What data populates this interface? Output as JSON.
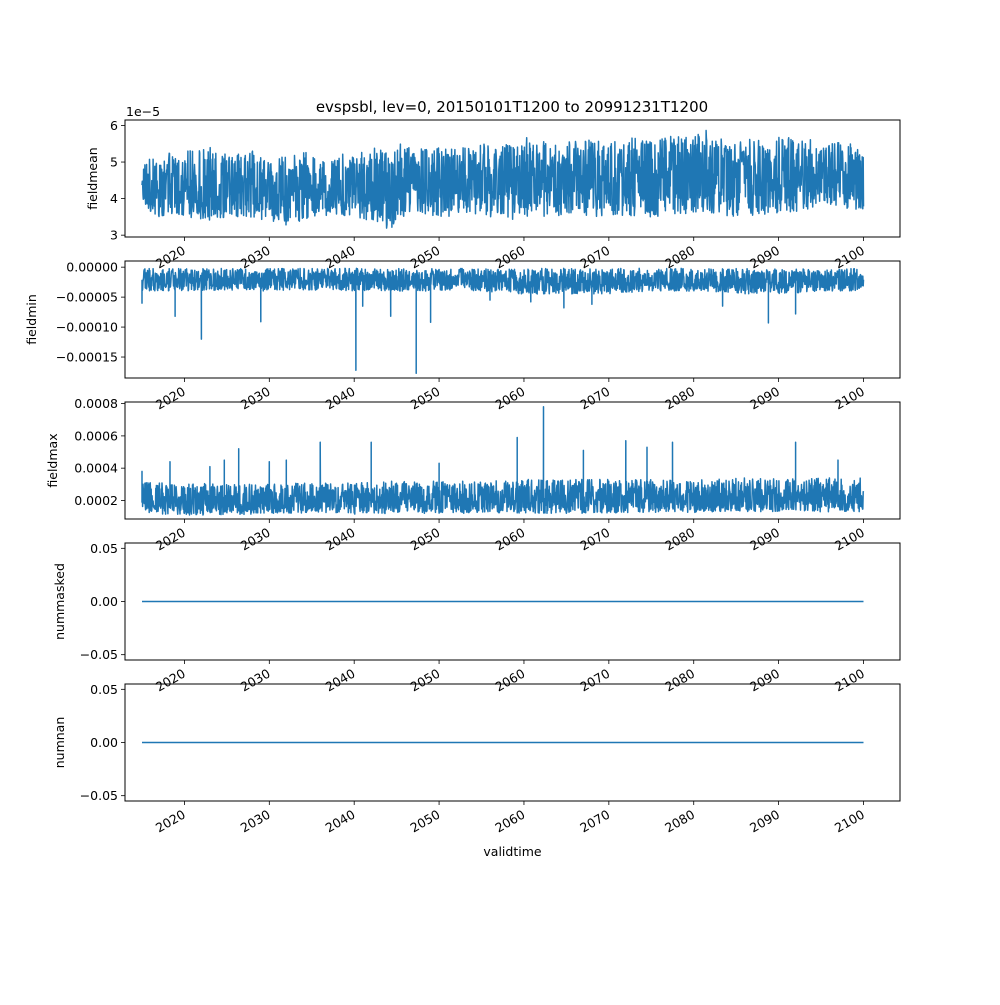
{
  "title": "evspsbl, lev=0, 20150101T1200 to 20991231T1200",
  "line_color": "#1f77b4",
  "chart_data": [
    {
      "type": "line",
      "ylabel": "fieldmean",
      "offset_label": "1e−5",
      "xlim": [
        2013.0,
        2104.3
      ],
      "ylim": [
        2.95,
        6.15
      ],
      "y_ticks": [
        3,
        4,
        5,
        6
      ],
      "y_tick_labels": [
        "3",
        "4",
        "5",
        "6"
      ],
      "x_ticks": [
        2020,
        2030,
        2040,
        2050,
        2060,
        2070,
        2080,
        2090,
        2100
      ],
      "x_tick_labels": [
        "2020",
        "2030",
        "2040",
        "2050",
        "2060",
        "2070",
        "2080",
        "2090",
        "2100"
      ],
      "series": [
        {
          "x": [
            2015,
            2017,
            2020,
            2023,
            2025,
            2028,
            2030,
            2033,
            2035,
            2040,
            2043,
            2044.5,
            2045,
            2050,
            2055,
            2060,
            2060.2,
            2063,
            2065,
            2070,
            2075,
            2080,
            2081.8,
            2082,
            2085,
            2090,
            2095,
            2100
          ],
          "low": [
            3.8,
            3.5,
            3.5,
            3.4,
            3.5,
            3.45,
            3.4,
            3.2,
            3.5,
            3.5,
            3.3,
            3.1,
            3.5,
            3.5,
            3.5,
            3.4,
            3.5,
            3.5,
            3.5,
            3.5,
            3.5,
            3.6,
            3.6,
            3.6,
            3.5,
            3.6,
            3.7,
            3.7
          ],
          "high": [
            4.9,
            5.3,
            5.3,
            5.4,
            5.2,
            5.3,
            5.1,
            5.2,
            5.3,
            5.3,
            5.4,
            5.2,
            5.5,
            5.4,
            5.5,
            5.5,
            5.8,
            5.5,
            5.6,
            5.6,
            5.7,
            5.7,
            6.0,
            5.7,
            5.6,
            5.7,
            5.6,
            5.5
          ],
          "mean": [
            4.2,
            4.2,
            4.2,
            4.2,
            4.2,
            4.25,
            4.3,
            4.3,
            4.3,
            4.35,
            4.35,
            4.35,
            4.4,
            4.4,
            4.4,
            4.45,
            4.45,
            4.45,
            4.5,
            4.5,
            4.55,
            4.55,
            4.55,
            4.55,
            4.55,
            4.6,
            4.6,
            4.6
          ]
        }
      ]
    },
    {
      "type": "line",
      "ylabel": "fieldmin",
      "xlim": [
        2013.0,
        2104.3
      ],
      "ylim": [
        -0.000185,
        1.03e-05
      ],
      "y_ticks": [
        0,
        -5e-05,
        -0.0001,
        -0.00015
      ],
      "y_tick_labels": [
        "0.00000",
        "−0.00005",
        "−0.00010",
        "−0.00015"
      ],
      "x_ticks": [
        2020,
        2030,
        2040,
        2050,
        2060,
        2070,
        2080,
        2090,
        2100
      ],
      "x_tick_labels": [
        "2020",
        "2030",
        "2040",
        "2050",
        "2060",
        "2070",
        "2080",
        "2090",
        "2100"
      ],
      "series": [
        {
          "x": [
            2015,
            2020,
            2025,
            2030,
            2035,
            2040,
            2045,
            2050,
            2055,
            2060,
            2065,
            2070,
            2075,
            2080,
            2085,
            2090,
            2095,
            2100
          ],
          "low": [
            -4e-05,
            -4e-05,
            -3.8e-05,
            -4e-05,
            -3.8e-05,
            -4e-05,
            -4e-05,
            -4e-05,
            -4e-05,
            -4.5e-05,
            -4.5e-05,
            -4.5e-05,
            -4e-05,
            -4e-05,
            -4.5e-05,
            -4.5e-05,
            -4e-05,
            -4e-05
          ],
          "high": [
            -2e-06,
            -2e-06,
            -2e-06,
            -2e-06,
            -2e-06,
            -2e-06,
            -2e-06,
            -2e-06,
            -2e-06,
            -2e-06,
            -2e-06,
            -2e-06,
            -2e-06,
            -2e-06,
            -2e-06,
            -2e-06,
            -2e-06,
            -2e-06
          ],
          "mean": [
            -2.2e-05,
            -2.2e-05,
            -2.2e-05,
            -2.2e-05,
            -2.2e-05,
            -2.2e-05,
            -2.2e-05,
            -2.2e-05,
            -2.2e-05,
            -2.4e-05,
            -2.4e-05,
            -2.4e-05,
            -2.4e-05,
            -2.4e-05,
            -2.4e-05,
            -2.4e-05,
            -2.4e-05,
            -2.4e-05
          ]
        }
      ],
      "spikes": [
        {
          "x": 2015.0,
          "y": -6e-05
        },
        {
          "x": 2018.9,
          "y": -8.2e-05
        },
        {
          "x": 2022.0,
          "y": -0.00012
        },
        {
          "x": 2029.0,
          "y": -9.1e-05
        },
        {
          "x": 2040.2,
          "y": -0.000172
        },
        {
          "x": 2041.0,
          "y": -6.5e-05
        },
        {
          "x": 2044.3,
          "y": -8.2e-05
        },
        {
          "x": 2047.3,
          "y": -0.000177
        },
        {
          "x": 2049.0,
          "y": -9.2e-05
        },
        {
          "x": 2056.0,
          "y": -5.5e-05
        },
        {
          "x": 2060.8,
          "y": -5.8e-05
        },
        {
          "x": 2064.7,
          "y": -6.8e-05
        },
        {
          "x": 2068.0,
          "y": -6.2e-05
        },
        {
          "x": 2083.4,
          "y": -6.5e-05
        },
        {
          "x": 2088.8,
          "y": -9.3e-05
        },
        {
          "x": 2092.0,
          "y": -7.8e-05
        }
      ]
    },
    {
      "type": "line",
      "ylabel": "fieldmax",
      "xlim": [
        2013.0,
        2104.3
      ],
      "ylim": [
        8.5e-05,
        0.00081
      ],
      "y_ticks": [
        0.0002,
        0.0004,
        0.0006,
        0.0008
      ],
      "y_tick_labels": [
        "0.0002",
        "0.0004",
        "0.0006",
        "0.0008"
      ],
      "x_ticks": [
        2020,
        2030,
        2040,
        2050,
        2060,
        2070,
        2080,
        2090,
        2100
      ],
      "x_tick_labels": [
        "2020",
        "2030",
        "2040",
        "2050",
        "2060",
        "2070",
        "2080",
        "2090",
        "2100"
      ],
      "series": [
        {
          "x": [
            2015,
            2020,
            2025,
            2030,
            2035,
            2040,
            2045,
            2050,
            2055,
            2060,
            2065,
            2070,
            2075,
            2080,
            2085,
            2090,
            2095,
            2100
          ],
          "low": [
            0.00012,
            0.00011,
            0.00011,
            0.000115,
            0.00012,
            0.000115,
            0.00012,
            0.00012,
            0.00012,
            0.00012,
            0.00012,
            0.00012,
            0.000125,
            0.000125,
            0.00013,
            0.00013,
            0.00013,
            0.00013
          ],
          "high": [
            0.00031,
            0.00031,
            0.0003,
            0.0003,
            0.00031,
            0.00031,
            0.00032,
            0.00032,
            0.00032,
            0.00033,
            0.00033,
            0.00033,
            0.00033,
            0.00033,
            0.00034,
            0.00034,
            0.00034,
            0.00034
          ],
          "mean": [
            0.00019,
            0.00019,
            0.00019,
            0.00019,
            0.0002,
            0.0002,
            0.0002,
            0.0002,
            0.0002,
            0.000205,
            0.000205,
            0.000205,
            0.00021,
            0.00021,
            0.00021,
            0.00021,
            0.00021,
            0.00021
          ]
        }
      ],
      "spikes": [
        {
          "x": 2015.0,
          "y": 0.00038
        },
        {
          "x": 2018.3,
          "y": 0.00044
        },
        {
          "x": 2023.0,
          "y": 0.00041
        },
        {
          "x": 2024.7,
          "y": 0.00045
        },
        {
          "x": 2026.4,
          "y": 0.00052
        },
        {
          "x": 2030.0,
          "y": 0.00044
        },
        {
          "x": 2032.0,
          "y": 0.00045
        },
        {
          "x": 2036.0,
          "y": 0.00056
        },
        {
          "x": 2042.0,
          "y": 0.00056
        },
        {
          "x": 2050.0,
          "y": 0.00043
        },
        {
          "x": 2059.2,
          "y": 0.00059
        },
        {
          "x": 2062.3,
          "y": 0.00078
        },
        {
          "x": 2067.0,
          "y": 0.00051
        },
        {
          "x": 2072.0,
          "y": 0.00057
        },
        {
          "x": 2074.5,
          "y": 0.00053
        },
        {
          "x": 2077.5,
          "y": 0.00056
        },
        {
          "x": 2092.0,
          "y": 0.00056
        },
        {
          "x": 2097.0,
          "y": 0.00045
        }
      ]
    },
    {
      "type": "line",
      "ylabel": "nummasked",
      "xlim": [
        2013.0,
        2104.3
      ],
      "ylim": [
        -0.055,
        0.055
      ],
      "y_ticks": [
        0.05,
        0.0,
        -0.05
      ],
      "y_tick_labels": [
        "0.05",
        "0.00",
        "−0.05"
      ],
      "x_ticks": [
        2020,
        2030,
        2040,
        2050,
        2060,
        2070,
        2080,
        2090,
        2100
      ],
      "x_tick_labels": [
        "2020",
        "2030",
        "2040",
        "2050",
        "2060",
        "2070",
        "2080",
        "2090",
        "2100"
      ],
      "series": [
        {
          "x": [
            2015,
            2100
          ],
          "y": [
            0,
            0
          ]
        }
      ]
    },
    {
      "type": "line",
      "ylabel": "numnan",
      "xlabel": "validtime",
      "xlim": [
        2013.0,
        2104.3
      ],
      "ylim": [
        -0.055,
        0.055
      ],
      "y_ticks": [
        0.05,
        0.0,
        -0.05
      ],
      "y_tick_labels": [
        "0.05",
        "0.00",
        "−0.05"
      ],
      "x_ticks": [
        2020,
        2030,
        2040,
        2050,
        2060,
        2070,
        2080,
        2090,
        2100
      ],
      "x_tick_labels": [
        "2020",
        "2030",
        "2040",
        "2050",
        "2060",
        "2070",
        "2080",
        "2090",
        "2100"
      ],
      "series": [
        {
          "x": [
            2015,
            2100
          ],
          "y": [
            0,
            0
          ]
        }
      ]
    }
  ]
}
